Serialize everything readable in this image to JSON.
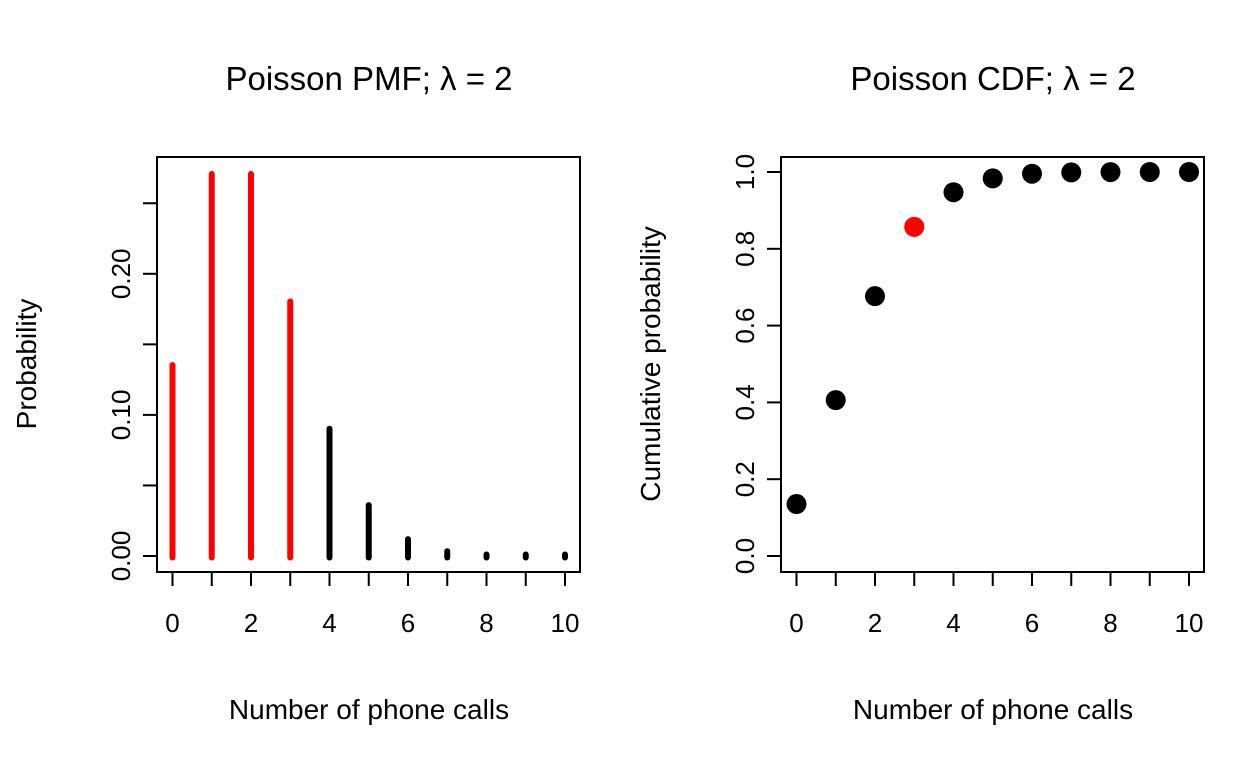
{
  "chart_data": [
    {
      "type": "bar",
      "title": "Poisson PMF; λ = 2",
      "xlabel": "Number of phone calls",
      "ylabel": "Probability",
      "x": [
        0,
        1,
        2,
        3,
        4,
        5,
        6,
        7,
        8,
        9,
        10
      ],
      "values": [
        0.1353,
        0.2707,
        0.2707,
        0.1804,
        0.0902,
        0.0361,
        0.012,
        0.0034,
        0.0009,
        0.0002,
        4e-05
      ],
      "highlight_color": "#ff0000",
      "default_color": "#000000",
      "highlighted_x": [
        0,
        1,
        2,
        3
      ],
      "x_ticks": [
        "0",
        "2",
        "4",
        "6",
        "8",
        "10"
      ],
      "y_ticks": [
        "0.00",
        "0.10",
        "0.20"
      ],
      "ylim": [
        0,
        0.2707
      ],
      "grid": false,
      "legend": "none"
    },
    {
      "type": "scatter",
      "title": "Poisson CDF; λ = 2",
      "xlabel": "Number of phone calls",
      "ylabel": "Cumulative probability",
      "x": [
        0,
        1,
        2,
        3,
        4,
        5,
        6,
        7,
        8,
        9,
        10
      ],
      "values": [
        0.1353,
        0.406,
        0.6767,
        0.8571,
        0.9473,
        0.9834,
        0.9955,
        0.9989,
        0.9998,
        1.0,
        1.0
      ],
      "highlight_color": "#ff0000",
      "default_color": "#000000",
      "highlighted_x": [
        3
      ],
      "x_ticks": [
        "0",
        "2",
        "4",
        "6",
        "8",
        "10"
      ],
      "y_ticks": [
        "0.0",
        "0.2",
        "0.4",
        "0.6",
        "0.8",
        "1.0"
      ],
      "ylim": [
        0,
        1
      ],
      "grid": false,
      "legend": "none"
    }
  ]
}
